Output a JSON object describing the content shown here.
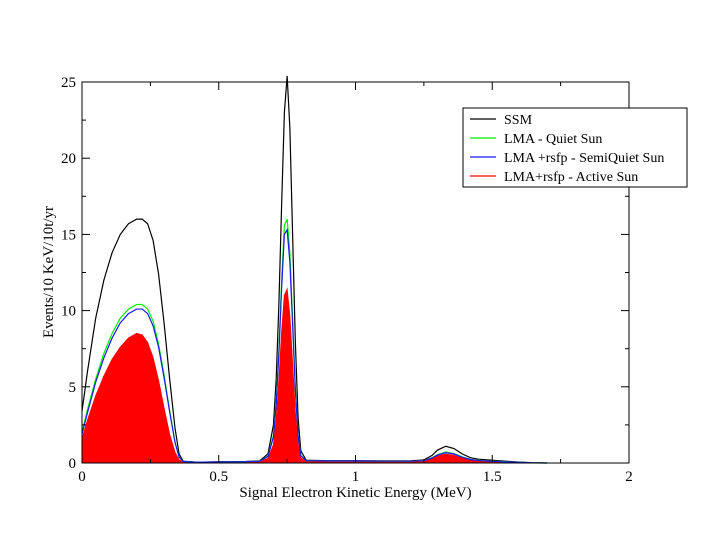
{
  "chart_data": {
    "type": "line",
    "title": "",
    "xlabel": "Signal Electron Kinetic Energy (MeV)",
    "ylabel": "Events/10 KeV/10t/yr",
    "xlim": [
      0,
      2
    ],
    "ylim": [
      0,
      25
    ],
    "grid": false,
    "legend_position": "top-right",
    "x_ticks": [
      {
        "value": 0,
        "label": "0"
      },
      {
        "value": 0.5,
        "label": "0.5"
      },
      {
        "value": 1,
        "label": "1"
      },
      {
        "value": 1.5,
        "label": "1.5"
      },
      {
        "value": 2,
        "label": "2"
      }
    ],
    "y_ticks": [
      {
        "value": 0,
        "label": "0"
      },
      {
        "value": 5,
        "label": "5"
      },
      {
        "value": 10,
        "label": "10"
      },
      {
        "value": 15,
        "label": "15"
      },
      {
        "value": 20,
        "label": "20"
      },
      {
        "value": 25,
        "label": "25"
      }
    ],
    "series": [
      {
        "name": "SSM",
        "color": "#000000",
        "fill": false,
        "points": [
          [
            0,
            3.4
          ],
          [
            0.02,
            6.0
          ],
          [
            0.05,
            9.5
          ],
          [
            0.08,
            12.0
          ],
          [
            0.11,
            13.8
          ],
          [
            0.14,
            15.0
          ],
          [
            0.17,
            15.7
          ],
          [
            0.2,
            16.0
          ],
          [
            0.22,
            16.0
          ],
          [
            0.24,
            15.7
          ],
          [
            0.26,
            14.6
          ],
          [
            0.28,
            12.4
          ],
          [
            0.3,
            9.2
          ],
          [
            0.32,
            5.6
          ],
          [
            0.34,
            2.3
          ],
          [
            0.355,
            0.6
          ],
          [
            0.37,
            0.12
          ],
          [
            0.42,
            0.05
          ],
          [
            0.5,
            0.08
          ],
          [
            0.6,
            0.1
          ],
          [
            0.65,
            0.14
          ],
          [
            0.68,
            0.6
          ],
          [
            0.7,
            2.5
          ],
          [
            0.71,
            5.5
          ],
          [
            0.72,
            10.5
          ],
          [
            0.73,
            17.0
          ],
          [
            0.74,
            23.0
          ],
          [
            0.75,
            25.4
          ],
          [
            0.76,
            22.0
          ],
          [
            0.77,
            15.0
          ],
          [
            0.78,
            8.0
          ],
          [
            0.79,
            3.0
          ],
          [
            0.8,
            0.8
          ],
          [
            0.82,
            0.18
          ],
          [
            0.9,
            0.15
          ],
          [
            1.0,
            0.15
          ],
          [
            1.1,
            0.14
          ],
          [
            1.2,
            0.14
          ],
          [
            1.25,
            0.2
          ],
          [
            1.28,
            0.5
          ],
          [
            1.3,
            0.85
          ],
          [
            1.33,
            1.1
          ],
          [
            1.36,
            0.95
          ],
          [
            1.39,
            0.6
          ],
          [
            1.42,
            0.35
          ],
          [
            1.45,
            0.25
          ],
          [
            1.5,
            0.18
          ],
          [
            1.55,
            0.12
          ],
          [
            1.6,
            0.06
          ],
          [
            1.65,
            0.02
          ],
          [
            1.7,
            0.0
          ]
        ]
      },
      {
        "name": "LMA - Quiet Sun",
        "color": "#00ee00",
        "fill": false,
        "points": [
          [
            0,
            2.0
          ],
          [
            0.02,
            3.5
          ],
          [
            0.05,
            5.5
          ],
          [
            0.08,
            7.2
          ],
          [
            0.11,
            8.5
          ],
          [
            0.14,
            9.5
          ],
          [
            0.17,
            10.1
          ],
          [
            0.2,
            10.4
          ],
          [
            0.22,
            10.4
          ],
          [
            0.24,
            10.1
          ],
          [
            0.26,
            9.3
          ],
          [
            0.28,
            7.8
          ],
          [
            0.3,
            5.8
          ],
          [
            0.32,
            3.5
          ],
          [
            0.34,
            1.4
          ],
          [
            0.355,
            0.4
          ],
          [
            0.37,
            0.1
          ],
          [
            0.42,
            0.05
          ],
          [
            0.5,
            0.07
          ],
          [
            0.6,
            0.09
          ],
          [
            0.65,
            0.12
          ],
          [
            0.68,
            0.45
          ],
          [
            0.7,
            1.8
          ],
          [
            0.71,
            4.0
          ],
          [
            0.72,
            7.5
          ],
          [
            0.73,
            12.0
          ],
          [
            0.74,
            15.6
          ],
          [
            0.75,
            16.0
          ],
          [
            0.76,
            13.8
          ],
          [
            0.77,
            9.5
          ],
          [
            0.78,
            5.0
          ],
          [
            0.79,
            1.9
          ],
          [
            0.8,
            0.5
          ],
          [
            0.82,
            0.15
          ],
          [
            0.9,
            0.13
          ],
          [
            1.0,
            0.13
          ],
          [
            1.1,
            0.12
          ],
          [
            1.2,
            0.12
          ],
          [
            1.25,
            0.16
          ],
          [
            1.28,
            0.35
          ],
          [
            1.3,
            0.55
          ],
          [
            1.33,
            0.72
          ],
          [
            1.36,
            0.62
          ],
          [
            1.39,
            0.4
          ],
          [
            1.42,
            0.24
          ],
          [
            1.45,
            0.17
          ],
          [
            1.5,
            0.12
          ],
          [
            1.55,
            0.08
          ],
          [
            1.6,
            0.04
          ],
          [
            1.65,
            0.01
          ],
          [
            1.7,
            0.0
          ]
        ]
      },
      {
        "name": "LMA +rsfp - SemiQuiet Sun",
        "color": "#1a1aee",
        "fill": false,
        "points": [
          [
            0,
            1.9
          ],
          [
            0.02,
            3.3
          ],
          [
            0.05,
            5.3
          ],
          [
            0.08,
            6.9
          ],
          [
            0.11,
            8.2
          ],
          [
            0.14,
            9.2
          ],
          [
            0.17,
            9.8
          ],
          [
            0.2,
            10.1
          ],
          [
            0.22,
            10.1
          ],
          [
            0.24,
            9.8
          ],
          [
            0.26,
            9.0
          ],
          [
            0.28,
            7.6
          ],
          [
            0.3,
            5.6
          ],
          [
            0.32,
            3.4
          ],
          [
            0.34,
            1.35
          ],
          [
            0.355,
            0.38
          ],
          [
            0.37,
            0.1
          ],
          [
            0.42,
            0.05
          ],
          [
            0.5,
            0.07
          ],
          [
            0.6,
            0.09
          ],
          [
            0.65,
            0.12
          ],
          [
            0.68,
            0.43
          ],
          [
            0.7,
            1.7
          ],
          [
            0.71,
            3.8
          ],
          [
            0.72,
            7.2
          ],
          [
            0.73,
            11.5
          ],
          [
            0.74,
            15.0
          ],
          [
            0.75,
            15.3
          ],
          [
            0.76,
            13.2
          ],
          [
            0.77,
            9.1
          ],
          [
            0.78,
            4.8
          ],
          [
            0.79,
            1.8
          ],
          [
            0.8,
            0.48
          ],
          [
            0.82,
            0.15
          ],
          [
            0.9,
            0.13
          ],
          [
            1.0,
            0.13
          ],
          [
            1.1,
            0.12
          ],
          [
            1.2,
            0.12
          ],
          [
            1.25,
            0.15
          ],
          [
            1.28,
            0.33
          ],
          [
            1.3,
            0.52
          ],
          [
            1.33,
            0.68
          ],
          [
            1.36,
            0.59
          ],
          [
            1.39,
            0.38
          ],
          [
            1.42,
            0.23
          ],
          [
            1.45,
            0.16
          ],
          [
            1.5,
            0.11
          ],
          [
            1.55,
            0.07
          ],
          [
            1.6,
            0.04
          ],
          [
            1.65,
            0.01
          ],
          [
            1.7,
            0.0
          ]
        ]
      },
      {
        "name": "LMA+rsfp - Active Sun",
        "color": "#ff0000",
        "fill": true,
        "points": [
          [
            0,
            1.6
          ],
          [
            0.02,
            2.8
          ],
          [
            0.05,
            4.4
          ],
          [
            0.08,
            5.7
          ],
          [
            0.11,
            6.8
          ],
          [
            0.14,
            7.6
          ],
          [
            0.17,
            8.2
          ],
          [
            0.2,
            8.5
          ],
          [
            0.22,
            8.4
          ],
          [
            0.24,
            7.9
          ],
          [
            0.26,
            6.9
          ],
          [
            0.28,
            5.4
          ],
          [
            0.3,
            3.6
          ],
          [
            0.32,
            1.9
          ],
          [
            0.34,
            0.7
          ],
          [
            0.355,
            0.2
          ],
          [
            0.37,
            0.06
          ],
          [
            0.42,
            0.04
          ],
          [
            0.5,
            0.06
          ],
          [
            0.6,
            0.08
          ],
          [
            0.65,
            0.1
          ],
          [
            0.68,
            0.3
          ],
          [
            0.7,
            1.2
          ],
          [
            0.71,
            2.8
          ],
          [
            0.72,
            5.4
          ],
          [
            0.73,
            8.6
          ],
          [
            0.74,
            11.0
          ],
          [
            0.75,
            11.4
          ],
          [
            0.76,
            9.6
          ],
          [
            0.77,
            6.5
          ],
          [
            0.78,
            3.3
          ],
          [
            0.79,
            1.2
          ],
          [
            0.8,
            0.33
          ],
          [
            0.82,
            0.1
          ],
          [
            0.9,
            0.09
          ],
          [
            1.0,
            0.09
          ],
          [
            1.1,
            0.09
          ],
          [
            1.2,
            0.09
          ],
          [
            1.25,
            0.12
          ],
          [
            1.28,
            0.28
          ],
          [
            1.3,
            0.45
          ],
          [
            1.33,
            0.58
          ],
          [
            1.36,
            0.5
          ],
          [
            1.39,
            0.32
          ],
          [
            1.42,
            0.19
          ],
          [
            1.45,
            0.13
          ],
          [
            1.5,
            0.09
          ],
          [
            1.55,
            0.05
          ],
          [
            1.6,
            0.03
          ],
          [
            1.65,
            0.01
          ],
          [
            1.7,
            0.0
          ]
        ]
      }
    ]
  }
}
